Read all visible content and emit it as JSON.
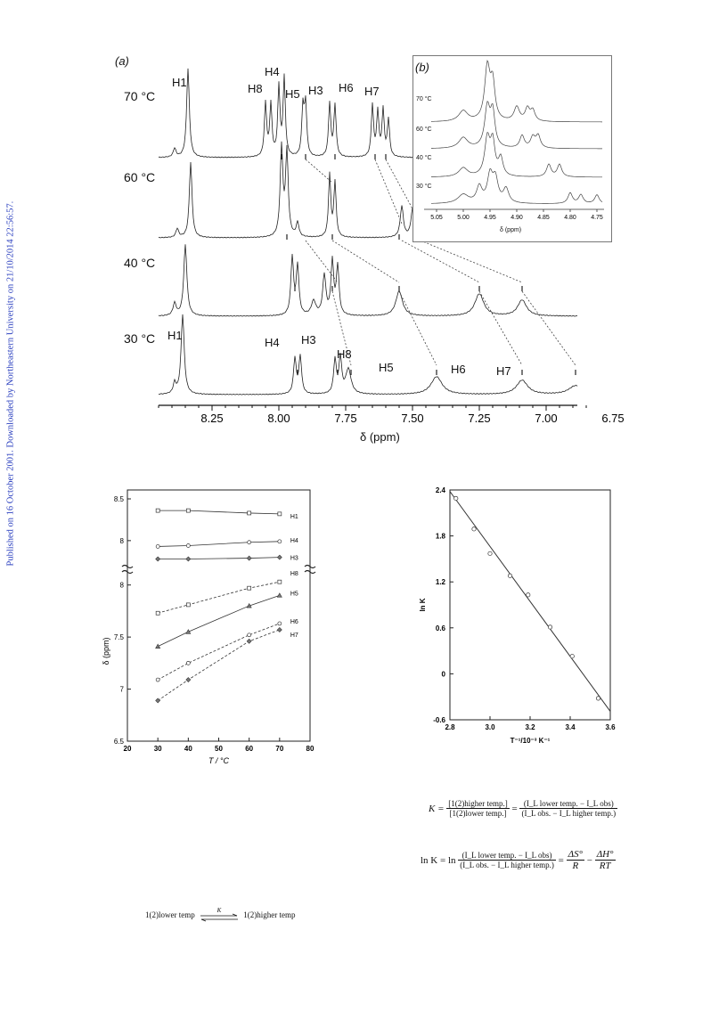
{
  "side_note": "Published on 16 October 2001. Downloaded by Northeastern University on 21/10/2014 22:56:57.",
  "figure_a": {
    "panel_label": "(a)",
    "temperatures": [
      "70 °C",
      "60 °C",
      "40 °C",
      "30 °C"
    ],
    "peak_labels_70": [
      "H1",
      "H8",
      "H4",
      "H5",
      "H3",
      "H6",
      "H7"
    ],
    "peak_labels_30": [
      "H1",
      "H4",
      "H3",
      "H8",
      "H5",
      "H6",
      "H7"
    ],
    "x_ticks": [
      "8.25",
      "8.00",
      "7.75",
      "7.50",
      "7.25",
      "7.00",
      "6.75"
    ],
    "xlabel": "δ (ppm)"
  },
  "figure_b": {
    "panel_label": "(b)",
    "temperatures": [
      "70 °C",
      "60 °C",
      "40 °C",
      "30 °C"
    ],
    "x_ticks": [
      "5.05",
      "5.00",
      "4.95",
      "4.90",
      "4.85",
      "4.80",
      "4.75"
    ],
    "xlabel": "δ (ppm)"
  },
  "chart_data": [
    {
      "type": "line",
      "xlabel": "T / °C",
      "ylabel": "δ (ppm)",
      "xlim": [
        20,
        80
      ],
      "x_ticks": [
        "20",
        "30",
        "40",
        "50",
        "60",
        "70",
        "80"
      ],
      "y_ticks_upper": [
        "8.5",
        "8"
      ],
      "y_ticks_lower": [
        "8",
        "7.5",
        "7",
        "6.5"
      ],
      "x": [
        30,
        40,
        60,
        70
      ],
      "series": [
        {
          "name": "H1",
          "values": [
            8.36,
            8.36,
            8.33,
            8.32
          ]
        },
        {
          "name": "H4",
          "values": [
            7.93,
            7.94,
            7.98,
            7.99
          ]
        },
        {
          "name": "H3",
          "values": [
            7.78,
            7.78,
            7.79,
            7.8
          ]
        },
        {
          "name": "H8",
          "values": [
            7.73,
            7.81,
            7.97,
            8.03
          ]
        },
        {
          "name": "H5",
          "values": [
            7.41,
            7.55,
            7.8,
            7.9
          ]
        },
        {
          "name": "H6",
          "values": [
            7.09,
            7.25,
            7.52,
            7.63
          ]
        },
        {
          "name": "H7",
          "values": [
            6.89,
            7.09,
            7.46,
            7.57
          ]
        }
      ]
    },
    {
      "type": "scatter",
      "xlabel": "T⁻¹/10⁻³ K⁻¹",
      "ylabel": "ln K",
      "xlim": [
        2.8,
        3.6
      ],
      "ylim": [
        -0.6,
        2.4
      ],
      "x_ticks": [
        "2.8",
        "3.0",
        "3.2",
        "3.4",
        "3.6"
      ],
      "y_ticks": [
        "2.4",
        "1.8",
        "1.2",
        "0.6",
        "0",
        "-0.6"
      ],
      "points": [
        {
          "x": 2.83,
          "y": 2.29
        },
        {
          "x": 2.92,
          "y": 1.89
        },
        {
          "x": 3.0,
          "y": 1.57
        },
        {
          "x": 3.1,
          "y": 1.28
        },
        {
          "x": 3.19,
          "y": 1.03
        },
        {
          "x": 3.3,
          "y": 0.61
        },
        {
          "x": 3.41,
          "y": 0.23
        },
        {
          "x": 3.54,
          "y": -0.32
        }
      ],
      "fit": [
        {
          "x": 2.8,
          "y": 2.38
        },
        {
          "x": 3.6,
          "y": -0.49
        }
      ]
    }
  ],
  "equations": {
    "eq1_lhs": "K =",
    "eq1_num": "[1(2)higher temp.]",
    "eq1_den": "[1(2)lower temp.]",
    "eq1_eq": "=",
    "eq1_num2": "(I_L lower temp. − I_L obs)",
    "eq1_den2": "(I_L obs. − I_L higher temp.)",
    "eq2_lhs": "ln K = ln",
    "eq2_num": "(I_L lower temp. − I_L obs)",
    "eq2_den": "(I_L obs. − I_L higher temp.)",
    "eq2_mid": "=",
    "eq2_ds_num": "ΔS°",
    "eq2_ds_den": "R",
    "eq2_minus": "−",
    "eq2_dh_num": "ΔH°",
    "eq2_dh_den": "RT",
    "eq3_left": "1(2)lower temp",
    "eq3_k": "K",
    "eq3_right": "1(2)higher temp"
  }
}
